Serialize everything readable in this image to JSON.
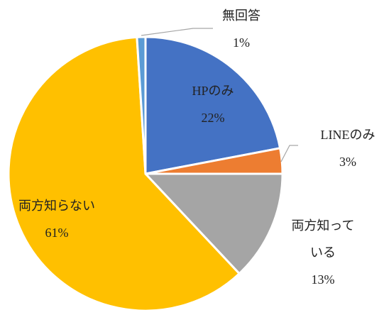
{
  "chart_data": {
    "type": "pie",
    "categories": [
      "HPのみ",
      "LINEのみ",
      "両方知っている",
      "両方知らない",
      "無回答"
    ],
    "values": [
      22,
      3,
      13,
      61,
      1
    ],
    "value_labels": [
      "22%",
      "3%",
      "13%",
      "61%",
      "1%"
    ],
    "colors": [
      "#4472c4",
      "#ed7d31",
      "#a5a5a5",
      "#ffc000",
      "#5b9bd5"
    ]
  }
}
